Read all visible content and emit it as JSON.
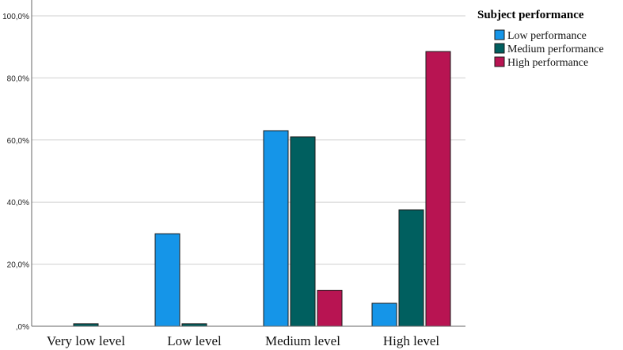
{
  "chart_data": {
    "type": "bar",
    "title": "",
    "xlabel": "",
    "ylabel": "",
    "ylim": [
      0,
      100
    ],
    "y_ticks": [
      0,
      20,
      40,
      60,
      80,
      100
    ],
    "y_tick_labels": [
      ",0%",
      "20,0%",
      "40,0%",
      "60,0%",
      "80,0%",
      "100,0%"
    ],
    "grid": "horizontal",
    "legend": {
      "title": "Subject performance",
      "position": "top-right"
    },
    "categories": [
      "Very low level",
      "Low level",
      "Medium level",
      "High level"
    ],
    "series": [
      {
        "name": "Low performance",
        "color": "#1595e8",
        "values": [
          0,
          29.8,
          63.0,
          7.4
        ]
      },
      {
        "name": "Medium performance",
        "color": "#005f5f",
        "values": [
          0.8,
          0.8,
          61.0,
          37.5
        ]
      },
      {
        "name": "High performance",
        "color": "#b81452",
        "values": [
          0,
          0,
          11.6,
          88.5
        ]
      }
    ]
  }
}
